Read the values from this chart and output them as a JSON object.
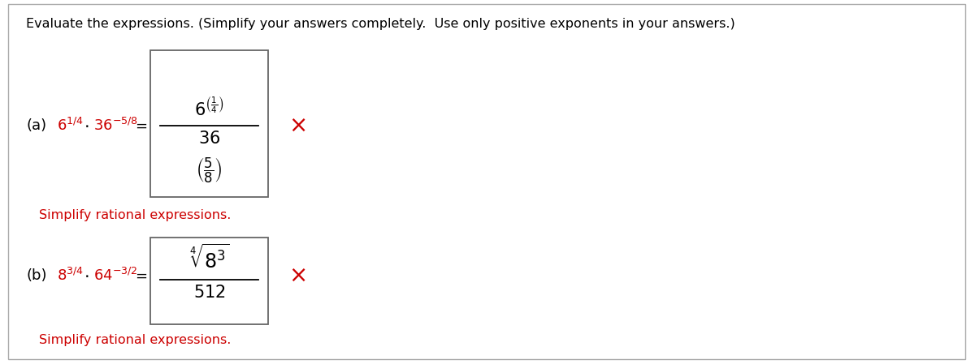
{
  "bg_color": "#ffffff",
  "title_text": "Evaluate the expressions. (Simplify your answers completely.  Use only positive exponents in your answers.)",
  "title_fontsize": 11.5,
  "title_color": "#000000",
  "red_color": "#cc0000",
  "black_color": "#000000",
  "x_mark": "×",
  "simplify_text": "Simplify rational expressions.",
  "simplify_fontsize": 11.5,
  "expr_fontsize": 13,
  "box_edge_color": "#666666",
  "outer_border_color": "#aaaaaa"
}
